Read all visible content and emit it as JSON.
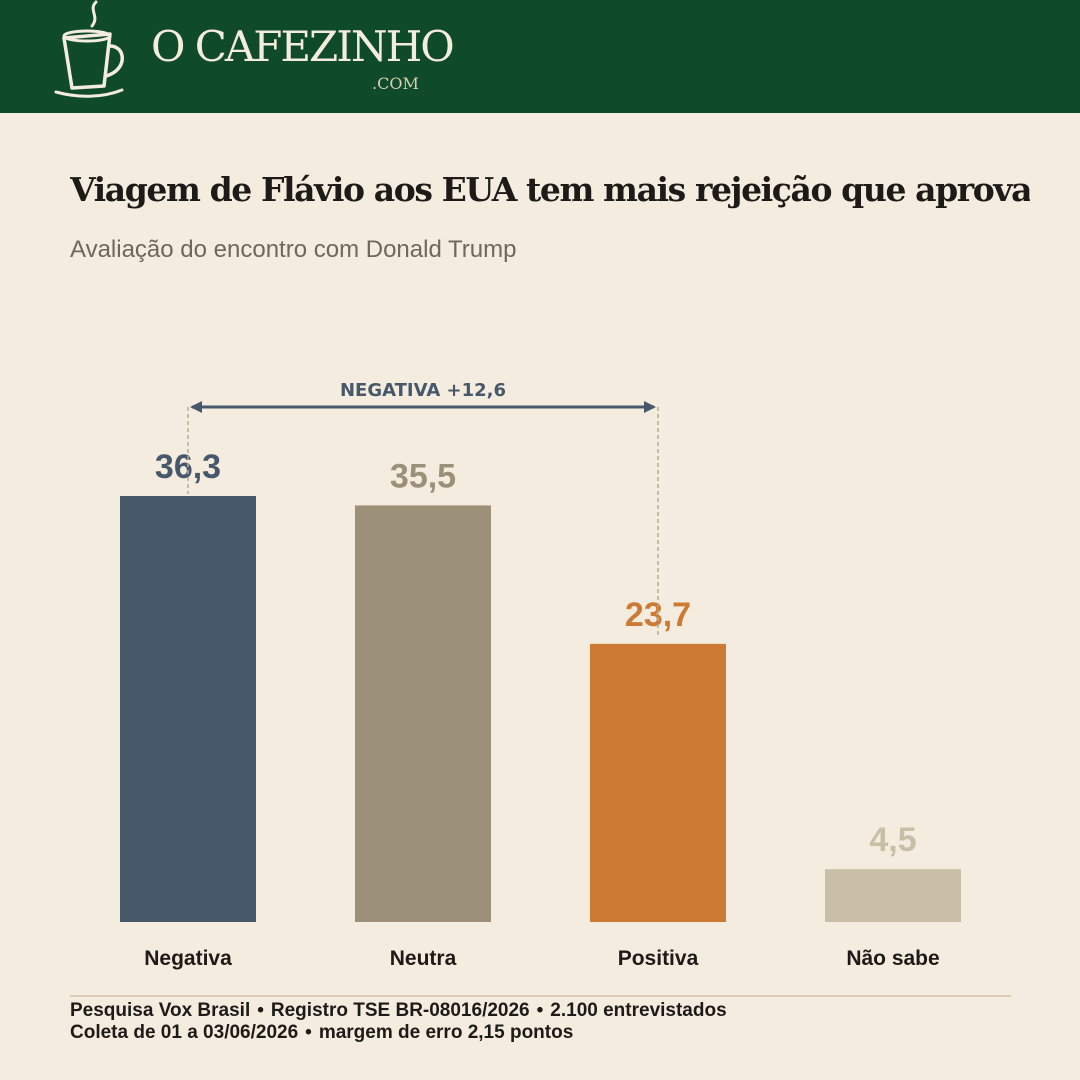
{
  "brand": {
    "name": "O CAFEZINHO",
    "tld": ".COM",
    "logo_icon": "coffee-cup-icon"
  },
  "colors": {
    "header_bg": "#0f4b2a",
    "page_bg": "#f4ecdf",
    "negativa": "#47586b",
    "neutra": "#9c9079",
    "positiva": "#cd7a35",
    "nao_sabe": "#c9bea6"
  },
  "chart_data": {
    "type": "bar",
    "title": "Viagem de Flávio aos EUA tem mais rejeição que aprovação",
    "subtitle": "Avaliação do encontro com Donald Trump",
    "categories": [
      "Negativa",
      "Neutra",
      "Positiva",
      "Não sabe"
    ],
    "values": [
      36.3,
      35.5,
      23.7,
      4.5
    ],
    "value_labels": [
      "36,3",
      "35,5",
      "23,7",
      "4,5"
    ],
    "colors": [
      "#47586b",
      "#9c9079",
      "#cd7a35",
      "#c9bea6"
    ],
    "ylim": [
      0,
      36.3
    ],
    "grid": false,
    "annotation": {
      "label": "NEGATIVA +12,6",
      "from": "Negativa",
      "to": "Positiva"
    }
  },
  "footer": {
    "line1": [
      "Pesquisa Vox Brasil",
      "Registro TSE BR-08016/2026",
      "2.100 entrevistados"
    ],
    "line2": [
      "Coleta de 01 a 03/06/2026",
      "margem de erro 2,15 pontos"
    ]
  }
}
